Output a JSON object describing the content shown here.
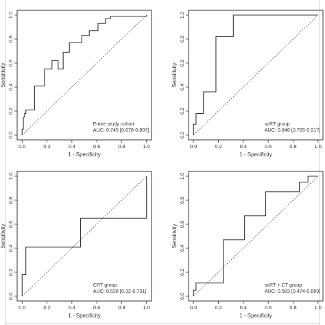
{
  "chart_data": [
    {
      "type": "line",
      "xlabel": "1 - Specificity",
      "ylabel": "Sensitivity",
      "xlim": [
        0,
        1
      ],
      "ylim": [
        0,
        1
      ],
      "xticks": [
        "0.0",
        "0.2",
        "0.4",
        "0.6",
        "0.8",
        "1.0"
      ],
      "yticks": [
        "0.0",
        "0.2",
        "0.4",
        "0.6",
        "0.8",
        "1.0"
      ],
      "annotation": [
        "Entire study cohort",
        "AUC: 0.745 [0.678-0.807]"
      ],
      "reference_line": [
        [
          0,
          0
        ],
        [
          1,
          1
        ]
      ],
      "roc": [
        [
          0,
          0
        ],
        [
          0,
          0.05
        ],
        [
          0.01,
          0.05
        ],
        [
          0.01,
          0.15
        ],
        [
          0.02,
          0.15
        ],
        [
          0.02,
          0.18
        ],
        [
          0.03,
          0.18
        ],
        [
          0.03,
          0.21
        ],
        [
          0.1,
          0.21
        ],
        [
          0.1,
          0.41
        ],
        [
          0.18,
          0.41
        ],
        [
          0.18,
          0.55
        ],
        [
          0.24,
          0.55
        ],
        [
          0.24,
          0.62
        ],
        [
          0.29,
          0.62
        ],
        [
          0.29,
          0.55
        ],
        [
          0.33,
          0.55
        ],
        [
          0.33,
          0.69
        ],
        [
          0.38,
          0.69
        ],
        [
          0.38,
          0.77
        ],
        [
          0.48,
          0.77
        ],
        [
          0.48,
          0.83
        ],
        [
          0.54,
          0.83
        ],
        [
          0.54,
          0.87
        ],
        [
          0.61,
          0.87
        ],
        [
          0.61,
          0.93
        ],
        [
          0.67,
          0.93
        ],
        [
          0.67,
          0.97
        ],
        [
          0.71,
          0.97
        ],
        [
          0.71,
          0.99
        ],
        [
          1.0,
          0.99
        ],
        [
          1.0,
          1.0
        ]
      ]
    },
    {
      "type": "line",
      "xlabel": "1 - Specificity",
      "ylabel": "Sensitivity",
      "xlim": [
        0,
        1
      ],
      "ylim": [
        0,
        1
      ],
      "xticks": [
        "0.0",
        "0.2",
        "0.4",
        "0.6",
        "0.8",
        "1.0"
      ],
      "yticks": [
        "0.0",
        "0.2",
        "0.4",
        "0.6",
        "0.8",
        "1.0"
      ],
      "annotation": [
        "scRT group",
        "AUC: 0.846 [0.765-0.917]"
      ],
      "reference_line": [
        [
          0,
          0
        ],
        [
          1,
          1
        ]
      ],
      "roc": [
        [
          0,
          0
        ],
        [
          0,
          0.09
        ],
        [
          0.02,
          0.09
        ],
        [
          0.02,
          0.18
        ],
        [
          0.08,
          0.18
        ],
        [
          0.08,
          0.36
        ],
        [
          0.18,
          0.36
        ],
        [
          0.18,
          0.82
        ],
        [
          0.32,
          0.82
        ],
        [
          0.32,
          1.0
        ],
        [
          1.0,
          1.0
        ]
      ]
    },
    {
      "type": "line",
      "xlabel": "1 - Specificity",
      "ylabel": "Sensitivity",
      "xlim": [
        0,
        1
      ],
      "ylim": [
        0,
        1
      ],
      "xticks": [
        "0.0",
        "0.2",
        "0.4",
        "0.6",
        "0.8",
        "1.0"
      ],
      "yticks": [
        "0.0",
        "0.2",
        "0.4",
        "0.6",
        "0.8",
        "1.0"
      ],
      "annotation": [
        "CRT group",
        "AUC: 0.528 [0.32-0.731]"
      ],
      "reference_line": [
        [
          0,
          0
        ],
        [
          1,
          1
        ]
      ],
      "roc": [
        [
          0,
          0
        ],
        [
          0,
          0.18
        ],
        [
          0.03,
          0.18
        ],
        [
          0.03,
          0.41
        ],
        [
          0.47,
          0.41
        ],
        [
          0.47,
          0.65
        ],
        [
          1.0,
          0.65
        ],
        [
          1.0,
          1.0
        ]
      ]
    },
    {
      "type": "line",
      "xlabel": "1 - Specificity",
      "ylabel": "Sensitivity",
      "xlim": [
        0,
        1
      ],
      "ylim": [
        0,
        1
      ],
      "xticks": [
        "0.0",
        "0.2",
        "0.4",
        "0.6",
        "0.8",
        "1.0"
      ],
      "yticks": [
        "0.0",
        "0.2",
        "0.4",
        "0.6",
        "0.8",
        "1.0"
      ],
      "annotation": [
        "scRT + CT group",
        "AUC: 0.583 [0.474-0.689]"
      ],
      "reference_line": [
        [
          0,
          0
        ],
        [
          1,
          1
        ]
      ],
      "roc": [
        [
          0,
          0
        ],
        [
          0,
          0.05
        ],
        [
          0.02,
          0.05
        ],
        [
          0.02,
          0.11
        ],
        [
          0.24,
          0.11
        ],
        [
          0.24,
          0.47
        ],
        [
          0.41,
          0.47
        ],
        [
          0.41,
          0.67
        ],
        [
          0.58,
          0.67
        ],
        [
          0.58,
          0.87
        ],
        [
          0.85,
          0.87
        ],
        [
          0.85,
          0.95
        ],
        [
          0.92,
          0.95
        ],
        [
          0.92,
          1.0
        ],
        [
          1.0,
          1.0
        ]
      ]
    }
  ]
}
